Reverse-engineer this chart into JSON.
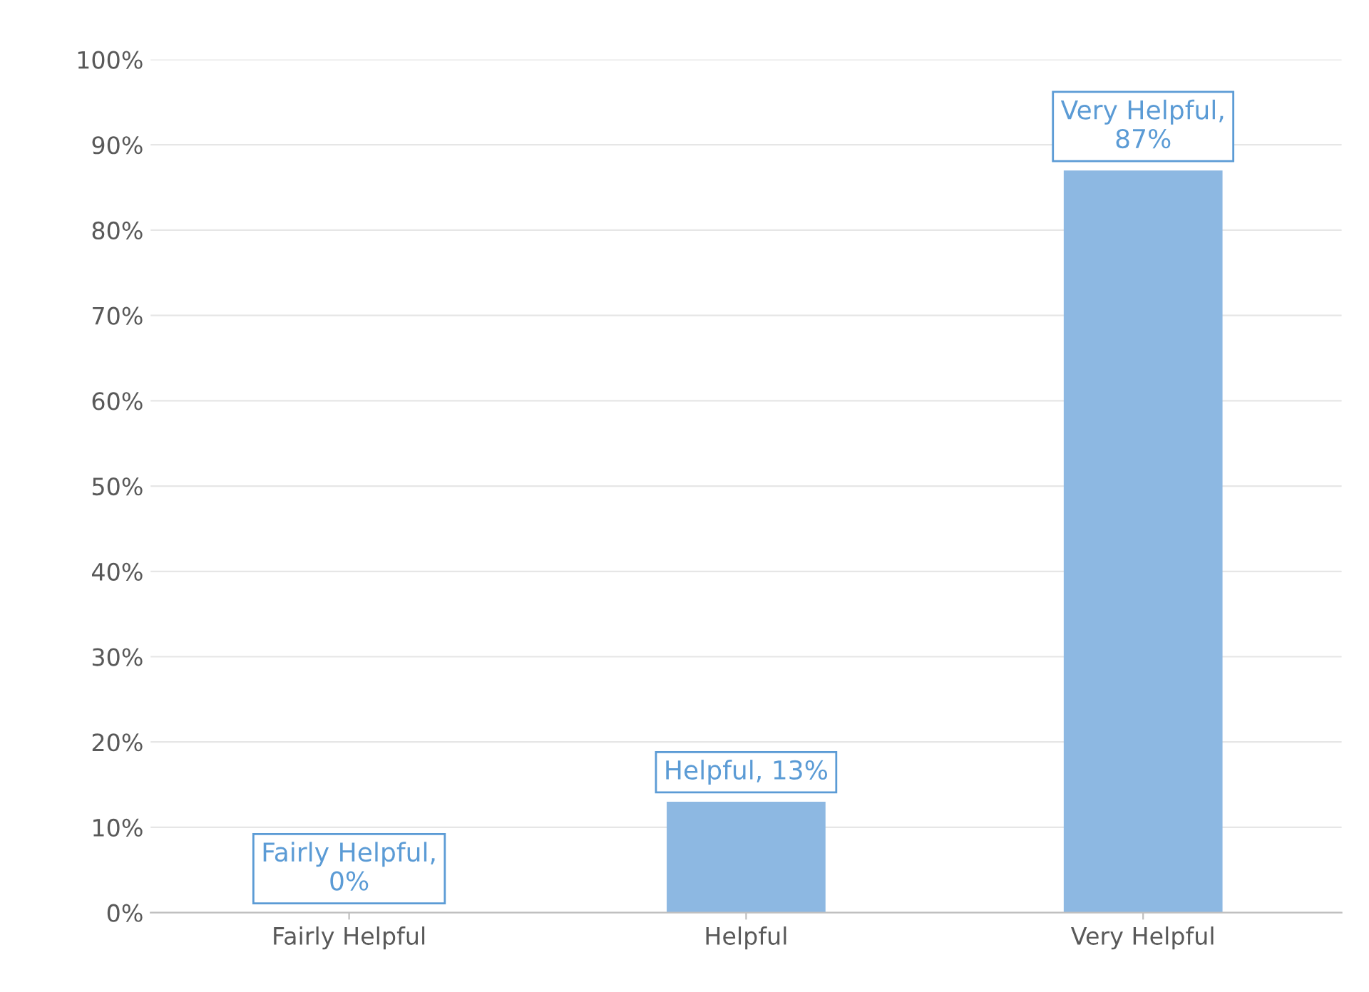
{
  "chart_data": {
    "type": "bar",
    "categories": [
      "Fairly Helpful",
      "Helpful",
      "Very Helpful"
    ],
    "values": [
      0,
      13,
      87
    ],
    "color": "#8db8e2",
    "value_labels": [
      "Fairly Helpful,\n0%",
      "Helpful, 13%",
      "Very Helpful,\n87%"
    ],
    "ylim": [
      0,
      100
    ],
    "yticks": [
      {
        "value": 0,
        "label": "0%"
      },
      {
        "value": 10,
        "label": "10%"
      },
      {
        "value": 20,
        "label": "20%"
      },
      {
        "value": 30,
        "label": "30%"
      },
      {
        "value": 40,
        "label": "40%"
      },
      {
        "value": 50,
        "label": "50%"
      },
      {
        "value": 60,
        "label": "60%"
      },
      {
        "value": 70,
        "label": "70%"
      },
      {
        "value": 80,
        "label": "80%"
      },
      {
        "value": 90,
        "label": "90%"
      },
      {
        "value": 100,
        "label": "100%"
      }
    ],
    "grid": "y"
  }
}
